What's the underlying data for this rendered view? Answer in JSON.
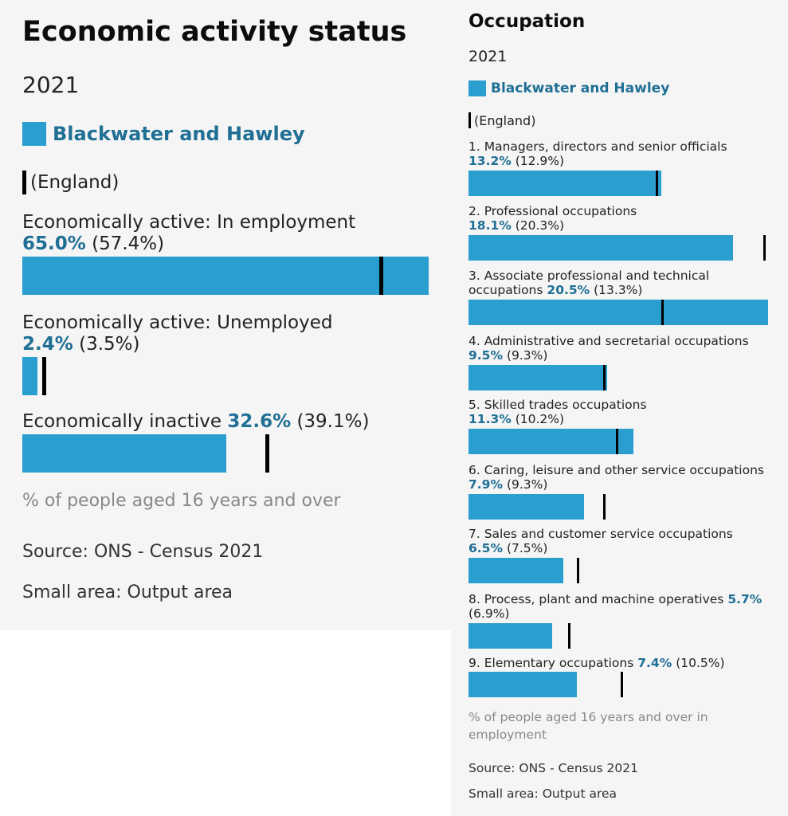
{
  "chart_data": [
    {
      "type": "bar",
      "title": "Economic activity status",
      "subtitle": "2021",
      "legend": {
        "area": "Blackwater and Hawley",
        "comparison": "(England)"
      },
      "categories": [
        "Economically active: In employment",
        "Economically active: Unemployed",
        "Economically inactive"
      ],
      "series": [
        {
          "name": "Blackwater and Hawley",
          "values": [
            65.0,
            2.4,
            32.6
          ]
        },
        {
          "name": "England",
          "values": [
            57.4,
            3.5,
            39.1
          ]
        }
      ],
      "value_labels": [
        "65.0%",
        "2.4%",
        "32.6%"
      ],
      "comparison_labels": [
        "(57.4%)",
        "(3.5%)",
        "(39.1%)"
      ],
      "xlim": [
        0,
        65.0
      ],
      "note": "% of people aged 16 years and over",
      "source": "Source: ONS - Census 2021",
      "small_area": "Small area: Output area"
    },
    {
      "type": "bar",
      "title": "Occupation",
      "subtitle": "2021",
      "legend": {
        "area": "Blackwater and Hawley",
        "comparison": "(England)"
      },
      "categories": [
        "1. Managers, directors and senior officials",
        "2. Professional occupations",
        "3. Associate professional and technical occupations",
        "4. Administrative and secretarial occupations",
        "5. Skilled trades occupations",
        "6. Caring, leisure and other service occupations",
        "7. Sales and customer service occupations",
        "8. Process, plant and machine operatives",
        "9. Elementary occupations"
      ],
      "series": [
        {
          "name": "Blackwater and Hawley",
          "values": [
            13.2,
            18.1,
            20.5,
            9.5,
            11.3,
            7.9,
            6.5,
            5.7,
            7.4
          ]
        },
        {
          "name": "England",
          "values": [
            12.9,
            20.3,
            13.3,
            9.3,
            10.2,
            9.3,
            7.5,
            6.9,
            10.5
          ]
        }
      ],
      "value_labels": [
        "13.2%",
        "18.1%",
        "20.5%",
        "9.5%",
        "11.3%",
        "7.9%",
        "6.5%",
        "5.7%",
        "7.4%"
      ],
      "comparison_labels": [
        "(12.9%)",
        "(20.3%)",
        "(13.3%)",
        "(9.3%)",
        "(10.2%)",
        "(9.3%)",
        "(7.5%)",
        "(6.9%)",
        "(10.5%)"
      ],
      "xlim": [
        0,
        20.5
      ],
      "note": "% of people aged 16 years and over in employment",
      "source": "Source: ONS - Census 2021",
      "small_area": "Small area: Output area"
    }
  ],
  "colors": {
    "bar": "#2a9fcf",
    "value_text": "#206f95",
    "marker": "#000000"
  }
}
